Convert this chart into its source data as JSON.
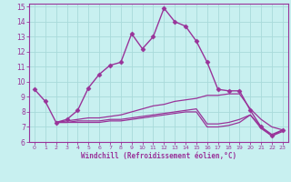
{
  "xlabel": "Windchill (Refroidissement éolien,°C)",
  "bg_color": "#c8f0f0",
  "grid_color": "#a8dada",
  "line_color": "#993399",
  "xlim": [
    -0.5,
    23.5
  ],
  "ylim": [
    6,
    15.2
  ],
  "xticks": [
    0,
    1,
    2,
    3,
    4,
    5,
    6,
    7,
    8,
    9,
    10,
    11,
    12,
    13,
    14,
    15,
    16,
    17,
    18,
    19,
    20,
    21,
    22,
    23
  ],
  "yticks": [
    6,
    7,
    8,
    9,
    10,
    11,
    12,
    13,
    14,
    15
  ],
  "series1": {
    "x": [
      0,
      1,
      2,
      3,
      4,
      5,
      6,
      7,
      8,
      9,
      10,
      11,
      12,
      13,
      14,
      15,
      16,
      17,
      18,
      19,
      20,
      21,
      22,
      23
    ],
    "y": [
      9.5,
      8.7,
      7.3,
      7.5,
      8.1,
      9.6,
      10.5,
      11.1,
      11.3,
      13.2,
      12.2,
      13.0,
      14.9,
      14.0,
      13.7,
      12.7,
      11.3,
      9.5,
      9.4,
      9.4,
      8.1,
      7.0,
      6.4,
      6.8
    ]
  },
  "series2": {
    "x": [
      2,
      3,
      4,
      5,
      6,
      7,
      8,
      9,
      10,
      11,
      12,
      13,
      14,
      15,
      16,
      17,
      18,
      19,
      20,
      21,
      22,
      23
    ],
    "y": [
      7.3,
      7.4,
      7.5,
      7.6,
      7.6,
      7.7,
      7.8,
      8.0,
      8.2,
      8.4,
      8.5,
      8.7,
      8.8,
      8.9,
      9.1,
      9.1,
      9.2,
      9.2,
      8.2,
      7.5,
      7.0,
      6.8
    ]
  },
  "series3": {
    "x": [
      2,
      3,
      4,
      5,
      6,
      7,
      8,
      9,
      10,
      11,
      12,
      13,
      14,
      15,
      16,
      17,
      18,
      19,
      20,
      21,
      22,
      23
    ],
    "y": [
      7.3,
      7.3,
      7.4,
      7.4,
      7.4,
      7.5,
      7.5,
      7.6,
      7.7,
      7.8,
      7.9,
      8.0,
      8.1,
      8.2,
      7.2,
      7.2,
      7.3,
      7.5,
      7.8,
      7.0,
      6.5,
      6.8
    ]
  },
  "series4": {
    "x": [
      2,
      3,
      4,
      5,
      6,
      7,
      8,
      9,
      10,
      11,
      12,
      13,
      14,
      15,
      16,
      17,
      18,
      19,
      20,
      21,
      22,
      23
    ],
    "y": [
      7.3,
      7.3,
      7.3,
      7.3,
      7.3,
      7.4,
      7.4,
      7.5,
      7.6,
      7.7,
      7.8,
      7.9,
      8.0,
      8.0,
      7.0,
      7.0,
      7.1,
      7.3,
      7.8,
      6.9,
      6.4,
      6.7
    ]
  }
}
